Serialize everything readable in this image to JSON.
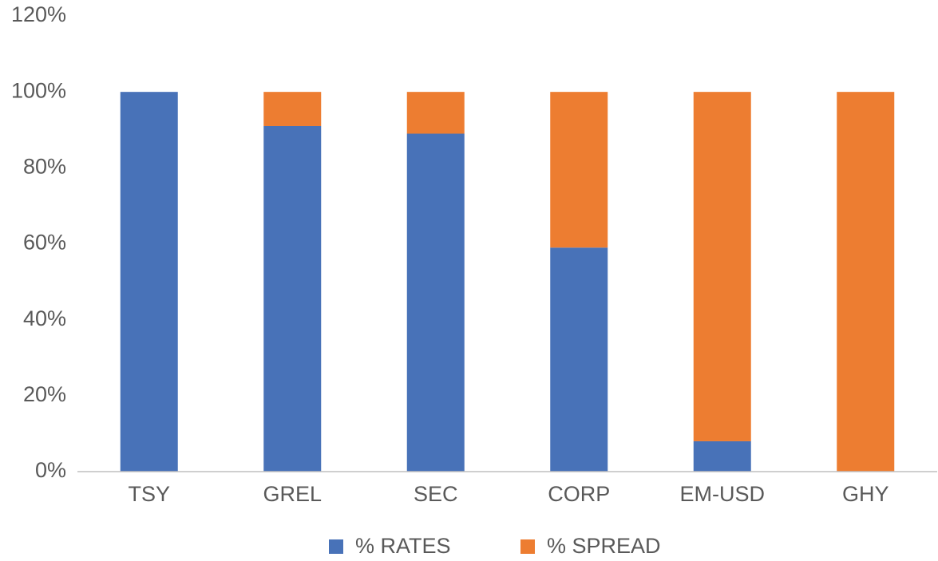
{
  "chart_data": {
    "type": "stacked_bar",
    "categories": [
      "TSY",
      "GREL",
      "SEC",
      "CORP",
      "EM-USD",
      "GHY"
    ],
    "series": [
      {
        "name": "% RATES",
        "color": "#4872b8",
        "values": [
          100,
          91,
          89,
          59,
          8,
          0
        ]
      },
      {
        "name": "% SPREAD",
        "color": "#ed7d31",
        "values": [
          0,
          9,
          11,
          41,
          92,
          100
        ]
      }
    ],
    "ylim": [
      0,
      120
    ],
    "yticks": [
      {
        "value": 0,
        "label": "0%"
      },
      {
        "value": 20,
        "label": "20%"
      },
      {
        "value": 40,
        "label": "40%"
      },
      {
        "value": 60,
        "label": "60%"
      },
      {
        "value": 80,
        "label": "80%"
      },
      {
        "value": 100,
        "label": "100%"
      },
      {
        "value": 120,
        "label": "120%"
      }
    ],
    "grid": false,
    "legend": "bottom"
  }
}
